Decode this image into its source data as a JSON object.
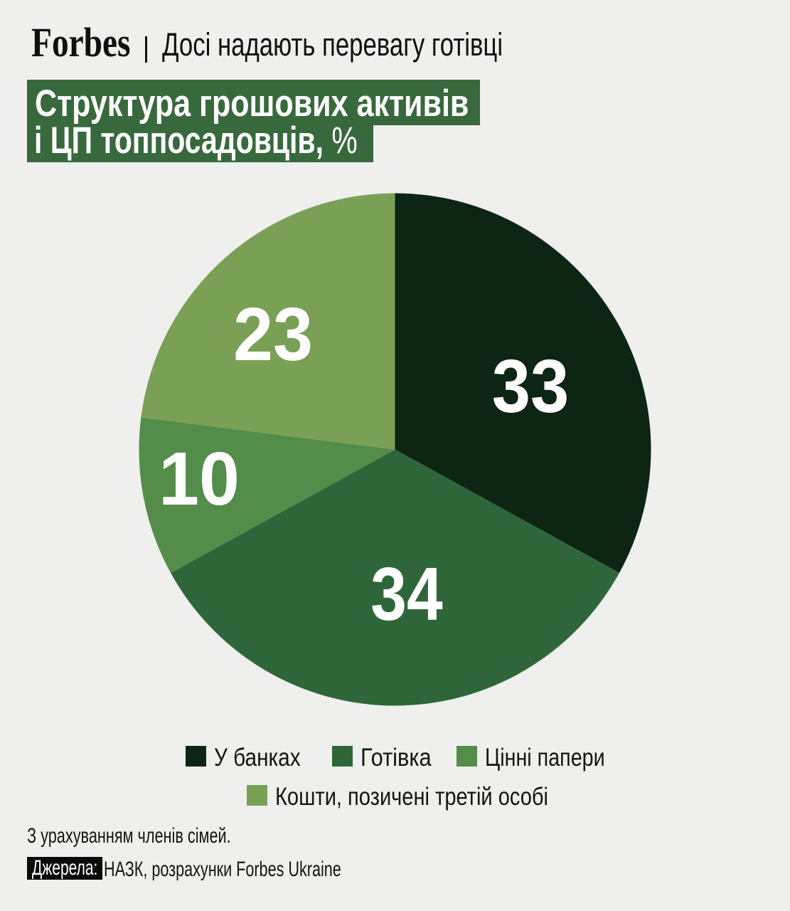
{
  "page": {
    "background": "#efefed"
  },
  "header": {
    "brand": "Forbes",
    "kicker": "Досі надають перевагу готівці"
  },
  "title": {
    "line1": "Структура грошових активів",
    "line2": "і ЦП топпосадовців,",
    "unit": "%",
    "highlight_color": "#38693d",
    "text_color": "#ffffff"
  },
  "chart_data": {
    "type": "pie",
    "title": "Структура грошових активів і ЦП топпосадовців, %",
    "unit": "%",
    "start_angle_deg": 0,
    "direction": "clockwise",
    "legend_position": "bottom",
    "slices": [
      {
        "label": "У банках",
        "value": 33,
        "color": "#0d2513"
      },
      {
        "label": "Готівка",
        "value": 34,
        "color": "#2f6639"
      },
      {
        "label": "Цінні папери",
        "value": 10,
        "color": "#548d4a"
      },
      {
        "label": "Кошти, позичені третій особі",
        "value": 23,
        "color": "#7aa056"
      }
    ]
  },
  "footnote": "З урахуванням членів сімей.",
  "source": {
    "label": "Джерела:",
    "text": "НАЗК, розрахунки Forbes Ukraine"
  }
}
